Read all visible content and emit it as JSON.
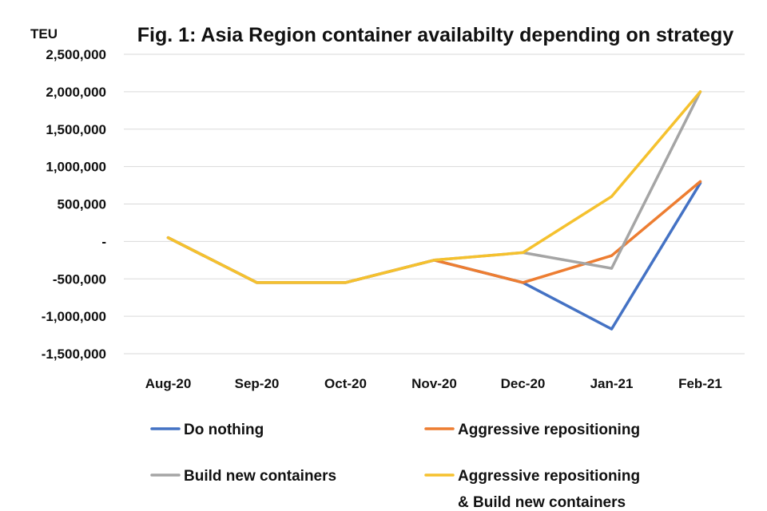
{
  "chart_data": {
    "type": "line",
    "title": "Fig. 1: Asia Region container availabilty depending on strategy",
    "ylabel": "TEU",
    "xlabel": "",
    "categories": [
      "Aug-20",
      "Sep-20",
      "Oct-20",
      "Nov-20",
      "Dec-20",
      "Jan-21",
      "Feb-21"
    ],
    "ylim": [
      -1500000,
      2500000
    ],
    "yticks": [
      2500000,
      2000000,
      1500000,
      1000000,
      500000,
      0,
      -500000,
      -1000000,
      -1500000
    ],
    "ytick_labels": [
      "2,500,000",
      "2,000,000",
      "1,500,000",
      "1,000,000",
      "500,000",
      "-",
      "-500,000",
      "-1,000,000",
      "-1,500,000"
    ],
    "grid": true,
    "legend_position": "bottom",
    "series": [
      {
        "name": "Do nothing",
        "color": "#4472C4",
        "values": [
          50000,
          -550000,
          -550000,
          -250000,
          -550000,
          -1170000,
          780000
        ]
      },
      {
        "name": "Aggressive repositioning",
        "color": "#ED7D31",
        "values": [
          50000,
          -550000,
          -550000,
          -250000,
          -550000,
          -190000,
          800000
        ]
      },
      {
        "name": "Build new containers",
        "color": "#A5A5A5",
        "values": [
          50000,
          -550000,
          -550000,
          -250000,
          -150000,
          -360000,
          2000000
        ]
      },
      {
        "name": "Aggressive repositioning & Build new containers",
        "color": "#F5C12E",
        "values": [
          50000,
          -550000,
          -550000,
          -250000,
          -150000,
          600000,
          2000000
        ]
      }
    ],
    "legend": [
      {
        "lines": [
          "Do nothing"
        ]
      },
      {
        "lines": [
          "Aggressive repositioning"
        ]
      },
      {
        "lines": [
          "Build new containers"
        ]
      },
      {
        "lines": [
          "Aggressive repositioning",
          "& Build new containers"
        ]
      }
    ]
  }
}
